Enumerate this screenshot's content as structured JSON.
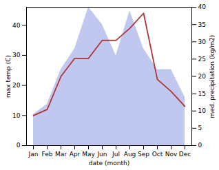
{
  "chart_data": {
    "type": "line",
    "categories": [
      "Jan",
      "Feb",
      "Mar",
      "Apr",
      "May",
      "Jun",
      "Jul",
      "Aug",
      "Sep",
      "Oct",
      "Nov",
      "Dec"
    ],
    "series": [
      {
        "type": "line",
        "axis": "y",
        "color": "#b03535",
        "values": [
          10,
          12,
          23,
          29,
          29,
          35,
          35,
          39,
          44,
          22,
          18,
          13
        ]
      },
      {
        "type": "area",
        "axis": "y2",
        "color": "#c0c8f0",
        "values": [
          9,
          12,
          22,
          28,
          40,
          35,
          26,
          39,
          28,
          22,
          22,
          14
        ]
      }
    ],
    "xlabel": "date (month)",
    "ylabel": "max temp (C)",
    "y2label": "med. precipitation (kg/m2)",
    "ylim": [
      0,
      46
    ],
    "yticks": [
      0,
      10,
      20,
      30,
      40
    ],
    "y2lim": [
      0,
      40
    ],
    "y2ticks": [
      0,
      5,
      10,
      15,
      20,
      25,
      30,
      35,
      40
    ]
  }
}
